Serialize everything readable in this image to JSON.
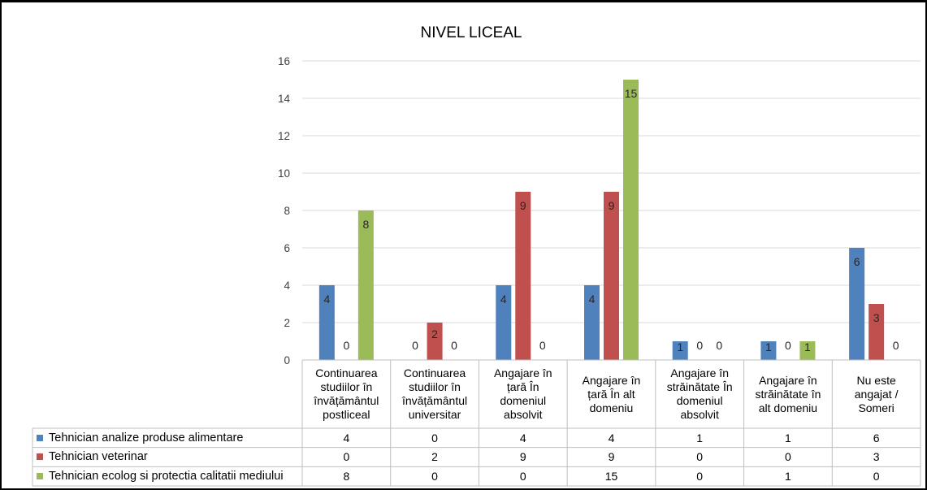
{
  "chart_data": {
    "type": "bar",
    "title": "NIVEL LICEAL",
    "categories": [
      "Continuarea studiilor în învățământul postliceal",
      "Continuarea studiilor în învățământul universitar",
      "Angajare în țară În domeniul absolvit",
      "Angajare în țară În alt domeniu",
      "Angajare în străinătate În domeniul absolvit",
      "Angajare în străinătate în alt domeniu",
      "Nu este angajat / Someri"
    ],
    "series": [
      {
        "name": "Tehnician analize produse alimentare",
        "color": "#4F81BD",
        "values": [
          4,
          0,
          4,
          4,
          1,
          1,
          6
        ]
      },
      {
        "name": "Tehnician veterinar",
        "color": "#C0504D",
        "values": [
          0,
          2,
          9,
          9,
          0,
          0,
          3
        ]
      },
      {
        "name": "Tehnician ecolog si protectia calitatii mediului",
        "color": "#9BBB59",
        "values": [
          8,
          0,
          0,
          15,
          0,
          1,
          0
        ]
      }
    ],
    "ylim": [
      0,
      16
    ],
    "yticks": [
      0,
      2,
      4,
      6,
      8,
      10,
      12,
      14,
      16
    ],
    "grid": true,
    "data_labels": true,
    "data_table": true,
    "legend": "in-data-table"
  }
}
